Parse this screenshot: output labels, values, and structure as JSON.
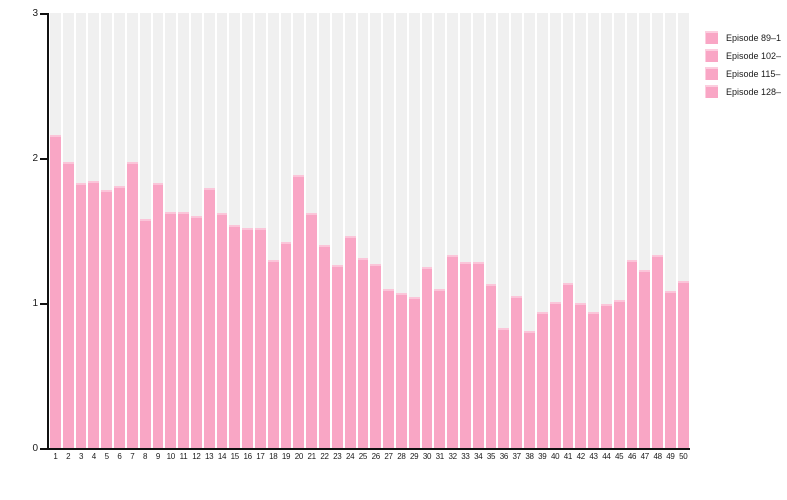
{
  "chart": {
    "background": "#ffffff",
    "bar_color": "#f9a6c5",
    "track_color": "#f0f0f0",
    "axis_color": "#111111",
    "text_color": "#1a1a1a"
  },
  "chart_data": {
    "type": "bar",
    "title": "",
    "xlabel": "",
    "ylabel": "",
    "grid": false,
    "ylim": [
      0,
      3
    ],
    "yticks": [
      0,
      1,
      2,
      3
    ],
    "legend_position": "top-right",
    "legend": [
      {
        "label": "Episode 89–1",
        "color": "#f9a6c5"
      },
      {
        "label": "Episode 102–",
        "color": "#f9a6c5"
      },
      {
        "label": "Episode 115–",
        "color": "#f9a6c5"
      },
      {
        "label": "Episode 128–",
        "color": "#f9a6c5"
      }
    ],
    "categories": [
      "1",
      "2",
      "3",
      "4",
      "5",
      "6",
      "7",
      "8",
      "9",
      "10",
      "11",
      "12",
      "13",
      "14",
      "15",
      "16",
      "17",
      "18",
      "19",
      "20",
      "21",
      "22",
      "23",
      "24",
      "25",
      "26",
      "27",
      "28",
      "29",
      "30",
      "31",
      "32",
      "33",
      "34",
      "35",
      "36",
      "37",
      "38",
      "39",
      "40",
      "41",
      "42",
      "43",
      "44",
      "45",
      "46",
      "47",
      "48",
      "49",
      "50"
    ],
    "values": [
      2.16,
      1.97,
      1.83,
      1.84,
      1.78,
      1.81,
      1.97,
      1.58,
      1.83,
      1.63,
      1.63,
      1.6,
      1.79,
      1.62,
      1.54,
      1.52,
      1.52,
      1.3,
      1.42,
      1.88,
      1.62,
      1.4,
      1.26,
      1.46,
      1.31,
      1.27,
      1.1,
      1.07,
      1.04,
      1.25,
      1.1,
      1.33,
      1.28,
      1.28,
      1.13,
      0.83,
      1.05,
      0.81,
      0.94,
      1.01,
      1.14,
      1.0,
      0.94,
      0.99,
      1.02,
      1.3,
      1.23,
      1.33,
      1.08,
      1.15
    ]
  }
}
